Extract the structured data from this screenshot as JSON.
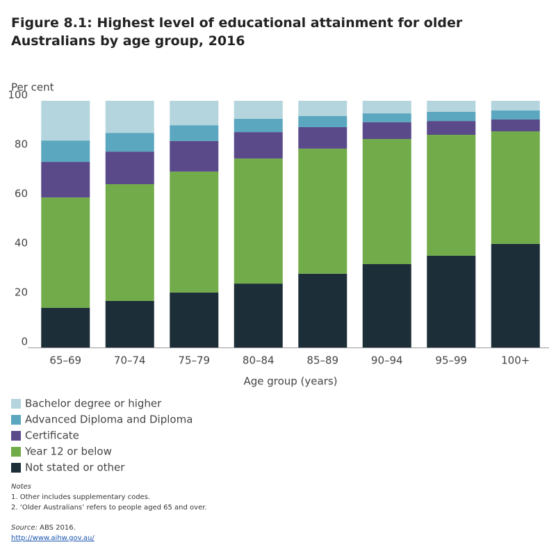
{
  "chart_data": {
    "type": "stacked-bar",
    "title": "Figure 8.1: Highest level of educational attainment for older Australians by age group, 2016",
    "y_label": "Per cent",
    "x_label": "Age group (years)",
    "categories": [
      "65–69",
      "70–74",
      "75–79",
      "80–84",
      "85–89",
      "90–94",
      "95–99",
      "100+"
    ],
    "series": [
      {
        "name": "Bachelor degree or higher",
        "color": "#b5d5de",
        "values": [
          16.1,
          13.0,
          9.9,
          7.3,
          6.2,
          5.1,
          4.5,
          3.9
        ]
      },
      {
        "name": "Advanced Diploma and Diploma",
        "color": "#5ba7bf",
        "values": [
          8.7,
          7.6,
          6.4,
          5.4,
          4.5,
          3.6,
          3.7,
          3.7
        ]
      },
      {
        "name": "Certificate",
        "color": "#5a4a8a",
        "values": [
          14.4,
          13.2,
          12.4,
          10.7,
          8.7,
          6.8,
          5.6,
          4.8
        ]
      },
      {
        "name": "Year 12 or below",
        "color": "#72ac4a",
        "values": [
          44.7,
          47.3,
          49.0,
          50.7,
          50.7,
          50.7,
          49.0,
          45.6
        ]
      },
      {
        "name": "Not stated or other",
        "color": "#1c2e38",
        "values": [
          16.1,
          18.9,
          22.3,
          25.9,
          29.9,
          33.8,
          37.2,
          42.0
        ]
      }
    ],
    "ylim": [
      0,
      100
    ],
    "yticks": [
      0,
      20,
      40,
      60,
      80,
      100
    ],
    "grid": false,
    "notes_title": "Notes",
    "notes": [
      "1. Other includes supplementary codes.",
      "2. ‘Older Australians’ refers to people aged 65 and over."
    ],
    "source_label": "Source:",
    "source": " ABS 2016.",
    "link": "http://www.aihw.gov.au/"
  }
}
